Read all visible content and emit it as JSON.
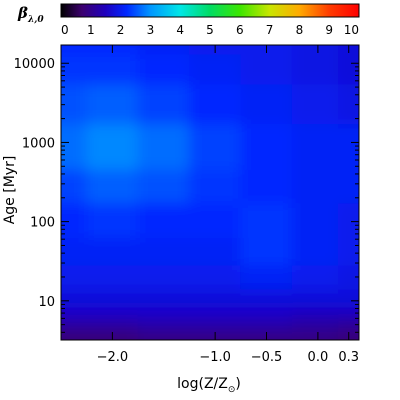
{
  "chart_data": {
    "type": "heatmap",
    "colorbar": {
      "title": "β",
      "title_subscript": "λ,0",
      "range": [
        0,
        10
      ],
      "ticks": [
        "0",
        "1",
        "2",
        "3",
        "4",
        "5",
        "6",
        "7",
        "8",
        "9",
        "10"
      ]
    },
    "xlabel": "log(Z/Z",
    "xlabel_sub": "⊙",
    "xlabel_end": ")",
    "xlim": [
      -2.5,
      0.4
    ],
    "x_ticks": [
      {
        "value": -2.0,
        "label": "−2.0"
      },
      {
        "value": -1.0,
        "label": "−1.0"
      },
      {
        "value": -0.5,
        "label": "−0.5"
      },
      {
        "value": 0.0,
        "label": "0.0"
      },
      {
        "value": 0.3,
        "label": "0.3"
      }
    ],
    "ylabel": "Age [Myr]",
    "ylim": [
      3.2,
      17000
    ],
    "yscale": "log",
    "y_ticks": [
      {
        "value": 10,
        "label": "10"
      },
      {
        "value": 100,
        "label": "100"
      },
      {
        "value": 1000,
        "label": "1000"
      },
      {
        "value": 10000,
        "label": "10000"
      }
    ],
    "x_grid": [
      -2.5,
      -2.0,
      -1.5,
      -1.0,
      -0.5,
      0.0,
      0.4
    ],
    "y_grid": [
      3.5,
      5,
      7,
      10,
      20,
      40,
      100,
      300,
      700,
      1000,
      3000,
      10000,
      17000
    ],
    "z": [
      [
        0.8,
        0.8,
        0.9,
        0.9,
        0.9,
        0.9,
        0.8
      ],
      [
        1.2,
        1.2,
        1.3,
        1.3,
        1.3,
        1.2,
        1.1
      ],
      [
        1.6,
        1.6,
        1.6,
        1.6,
        1.6,
        1.5,
        1.5
      ],
      [
        1.8,
        1.8,
        1.8,
        1.8,
        1.8,
        1.8,
        1.8
      ],
      [
        2.0,
        2.0,
        2.0,
        2.0,
        2.1,
        2.0,
        1.9
      ],
      [
        2.1,
        2.1,
        2.1,
        2.1,
        2.3,
        2.1,
        2.0
      ],
      [
        2.2,
        2.3,
        2.2,
        2.2,
        2.3,
        2.1,
        2.0
      ],
      [
        2.4,
        2.6,
        2.5,
        2.3,
        2.2,
        2.1,
        2.1
      ],
      [
        2.7,
        2.9,
        2.7,
        2.4,
        2.2,
        2.1,
        2.1
      ],
      [
        2.7,
        2.9,
        2.7,
        2.4,
        2.2,
        2.1,
        2.1
      ],
      [
        2.5,
        2.6,
        2.4,
        2.2,
        2.1,
        2.0,
        1.9
      ],
      [
        2.3,
        2.3,
        2.2,
        2.1,
        2.0,
        1.9,
        1.8
      ],
      [
        2.2,
        2.2,
        2.1,
        2.0,
        2.0,
        1.9,
        1.8
      ]
    ],
    "grid": false,
    "legend": "colorbar-top"
  }
}
